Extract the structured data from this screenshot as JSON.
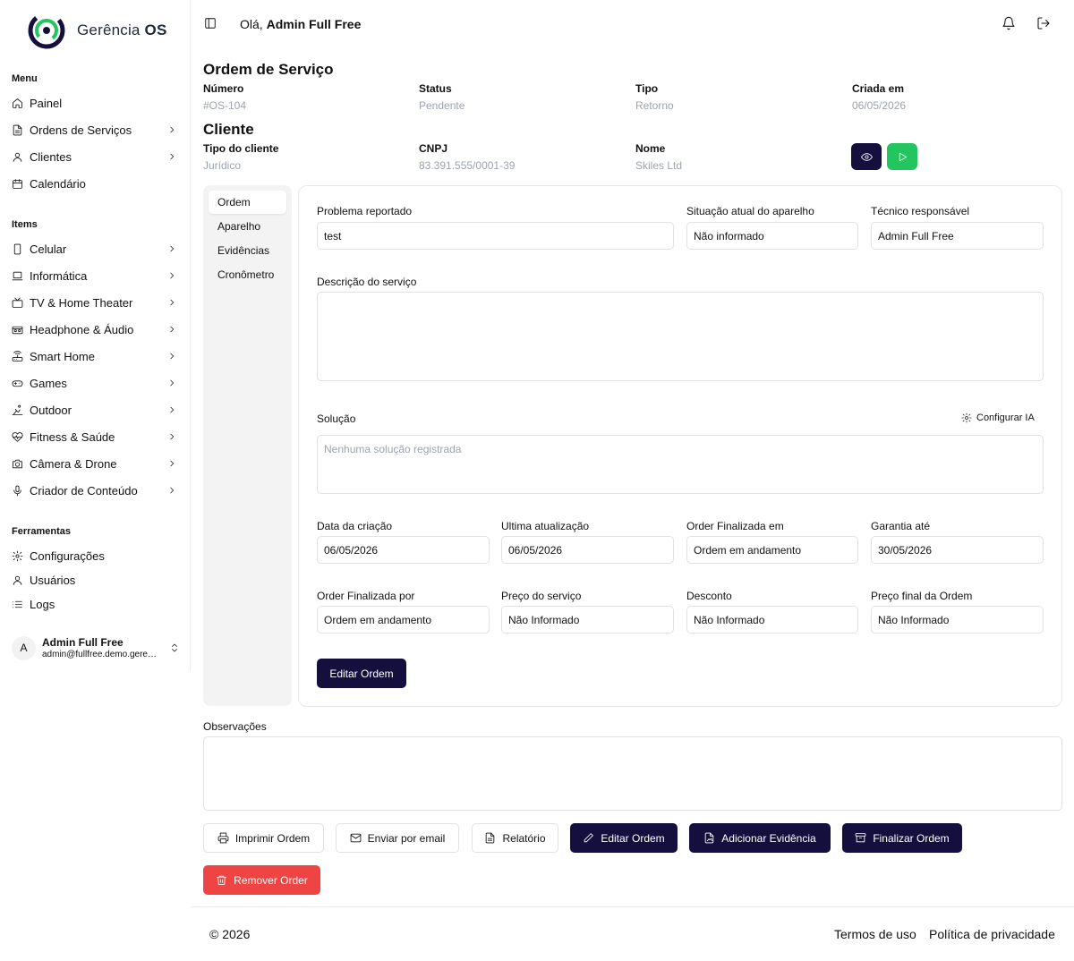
{
  "brand": {
    "name_light": "Gerência",
    "name_bold": "OS",
    "accent": "#22c55e",
    "dark": "#150f3d"
  },
  "sidebar": {
    "groups": [
      {
        "label": "Menu",
        "items": [
          {
            "label": "Painel",
            "icon": "home-icon"
          },
          {
            "label": "Ordens de Serviços",
            "icon": "file-text-icon",
            "has_children": true
          },
          {
            "label": "Clientes",
            "icon": "user-icon",
            "has_children": true
          },
          {
            "label": "Calendário",
            "icon": "calendar-icon"
          }
        ]
      },
      {
        "label": "Items",
        "items": [
          {
            "label": "Celular",
            "icon": "smartphone-icon",
            "has_children": true
          },
          {
            "label": "Informática",
            "icon": "laptop-icon",
            "has_children": true
          },
          {
            "label": "TV & Home Theater",
            "icon": "tv-icon",
            "has_children": true
          },
          {
            "label": "Headphone & Áudio",
            "icon": "speaker-icon",
            "has_children": true
          },
          {
            "label": "Smart Home",
            "icon": "router-icon",
            "has_children": true
          },
          {
            "label": "Games",
            "icon": "gamepad-icon",
            "has_children": true
          },
          {
            "label": "Outdoor",
            "icon": "outdoor-icon",
            "has_children": true
          },
          {
            "label": "Fitness & Saúde",
            "icon": "heart-pulse-icon",
            "has_children": true
          },
          {
            "label": "Câmera & Drone",
            "icon": "camera-icon",
            "has_children": true
          },
          {
            "label": "Criador de Conteúdo",
            "icon": "microphone-icon",
            "has_children": true
          }
        ]
      },
      {
        "label": "Ferramentas",
        "items": [
          {
            "label": "Configurações",
            "icon": "gear-icon"
          },
          {
            "label": "Usuários",
            "icon": "user-icon"
          },
          {
            "label": "Logs",
            "icon": "list-icon"
          }
        ]
      }
    ],
    "user": {
      "initial": "A",
      "name": "Admin Full Free",
      "email": "admin@fullfree.demo.gerenciaos.com"
    }
  },
  "header": {
    "greeting": "Olá,",
    "user_name": "Admin Full Free"
  },
  "order": {
    "title": "Ordem de Serviço",
    "fields": [
      {
        "label": "Número",
        "value": "#OS-104"
      },
      {
        "label": "Status",
        "value": "Pendente"
      },
      {
        "label": "Tipo",
        "value": "Retorno"
      },
      {
        "label": "Criada em",
        "value": "06/05/2026"
      }
    ]
  },
  "client": {
    "title": "Cliente",
    "fields": [
      {
        "label": "Tipo do cliente",
        "value": "Jurídico"
      },
      {
        "label": "CNPJ",
        "value": "83.391.555/0001-39"
      },
      {
        "label": "Nome",
        "value": "Skiles Ltd"
      }
    ]
  },
  "tabs": [
    "Ordem",
    "Aparelho",
    "Evidências",
    "Cronômetro"
  ],
  "form": {
    "problem": {
      "label": "Problema reportado",
      "value": "test"
    },
    "device_state": {
      "label": "Situação atual do aparelho",
      "value": "Não informado"
    },
    "technician": {
      "label": "Técnico responsável",
      "value": "Admin Full Free"
    },
    "description": {
      "label": "Descrição do serviço",
      "value": ""
    },
    "solution": {
      "label": "Solução",
      "placeholder": "Nenhuma solução registrada",
      "ai_button": "Configurar IA"
    },
    "created": {
      "label": "Data da criação",
      "value": "06/05/2026"
    },
    "updated": {
      "label": "Ultima atualização",
      "value": "06/05/2026"
    },
    "finished_at": {
      "label": "Order Finalizada em",
      "value": "Ordem em andamento"
    },
    "warranty": {
      "label": "Garantia até",
      "value": "30/05/2026"
    },
    "finished_by": {
      "label": "Order Finalizada por",
      "value": "Ordem em andamento"
    },
    "service_price": {
      "label": "Preço do serviço",
      "value": "Não Informado"
    },
    "discount": {
      "label": "Desconto",
      "value": "Não Informado"
    },
    "final_price": {
      "label": "Preço final da Ordem",
      "value": "Não Informado"
    },
    "edit_button": "Editar Ordem"
  },
  "notes": {
    "label": "Observações",
    "value": ""
  },
  "actions": {
    "print": "Imprimir Ordem",
    "email": "Enviar por email",
    "report": "Relatório",
    "edit": "Editar Ordem",
    "add_evidence": "Adicionar Evidência",
    "finish": "Finalizar Ordem",
    "remove": "Remover Order"
  },
  "footer": {
    "copyright": "© 2026",
    "terms": "Termos de uso",
    "privacy": "Política de privacidade"
  }
}
